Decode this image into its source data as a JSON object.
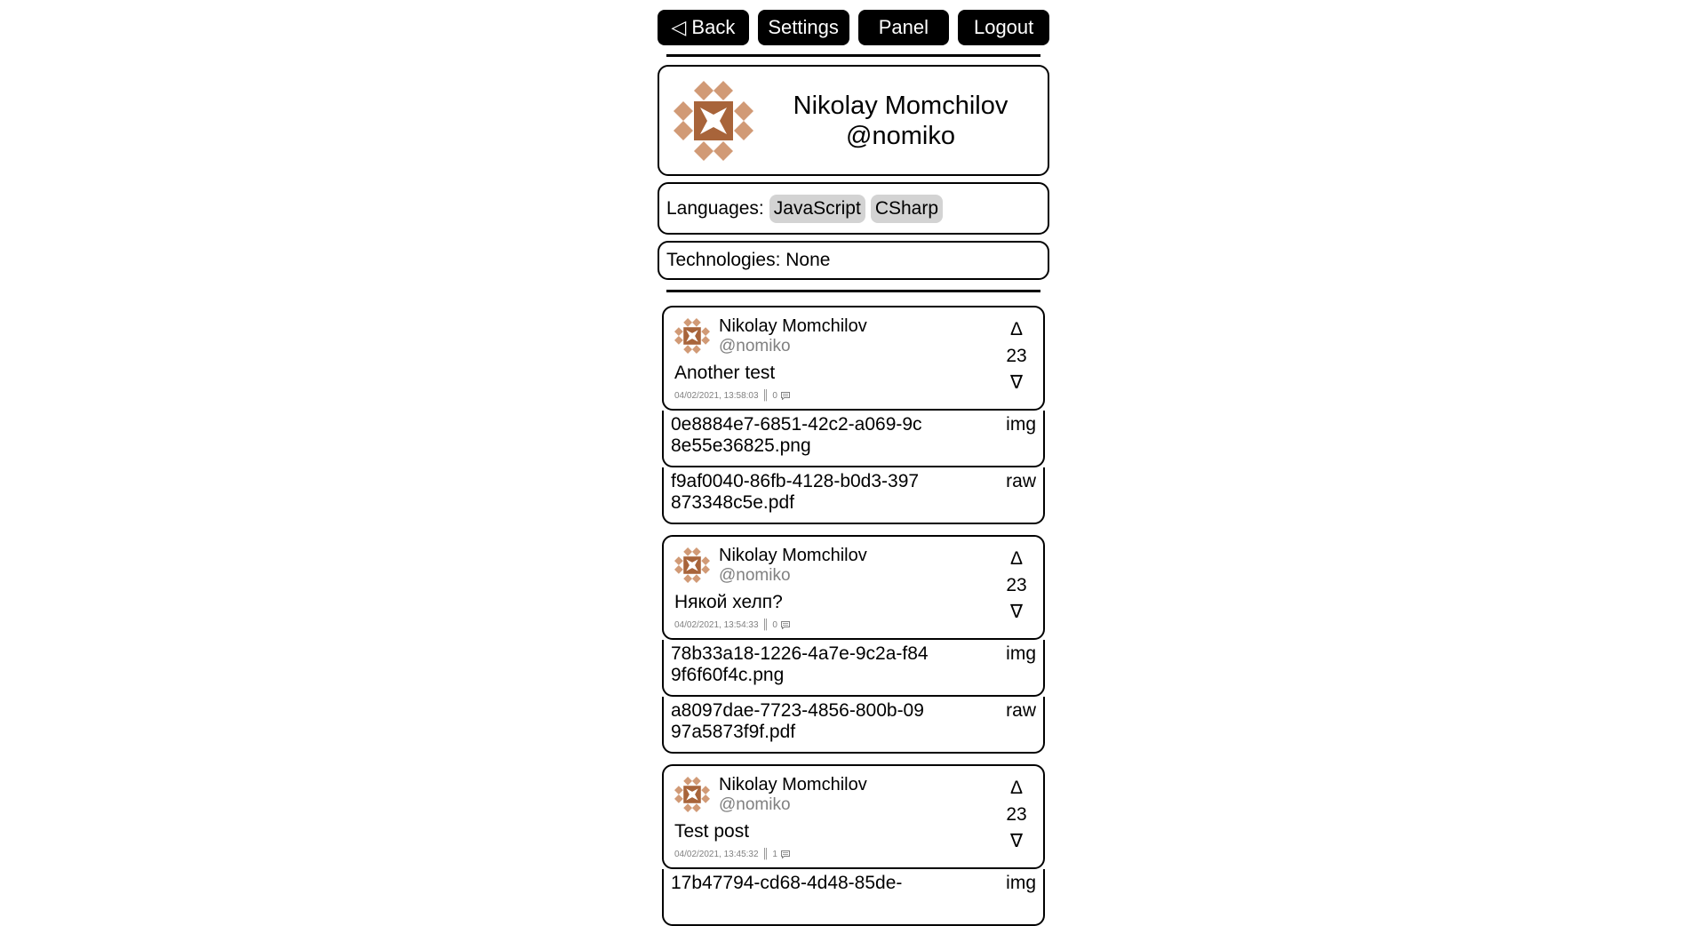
{
  "nav": {
    "back": "◁ Back",
    "settings": "Settings",
    "panel": "Panel",
    "logout": "Logout"
  },
  "profile": {
    "name": "Nikolay Momchilov",
    "handle": "@nomiko",
    "avatar_colors": {
      "dark": "#a8643a",
      "light": "#d19a76"
    }
  },
  "languages": {
    "label": "Languages:",
    "items": [
      "JavaScript",
      "CSharp"
    ]
  },
  "technologies": {
    "label": "Technologies: None"
  },
  "posts": [
    {
      "name": "Nikolay Momchilov",
      "handle": "@nomiko",
      "text": "Another test",
      "date": "04/02/2021, 13:58:03",
      "sep": "║",
      "comments": "0",
      "score": "23",
      "up": "Δ",
      "down": "∇",
      "files": [
        {
          "name": "0e8884e7-6851-42c2-a069-9c8e55e36825.png",
          "type": "img"
        },
        {
          "name": "f9af0040-86fb-4128-b0d3-397873348c5e.pdf",
          "type": "raw"
        }
      ]
    },
    {
      "name": "Nikolay Momchilov",
      "handle": "@nomiko",
      "text": "Някой хелп?",
      "date": "04/02/2021, 13:54:33",
      "sep": "║",
      "comments": "0",
      "score": "23",
      "up": "Δ",
      "down": "∇",
      "files": [
        {
          "name": "78b33a18-1226-4a7e-9c2a-f849f6f60f4c.png",
          "type": "img"
        },
        {
          "name": "a8097dae-7723-4856-800b-0997a5873f9f.pdf",
          "type": "raw"
        }
      ]
    },
    {
      "name": "Nikolay Momchilov",
      "handle": "@nomiko",
      "text": "Test post",
      "date": "04/02/2021, 13:45:32",
      "sep": "║",
      "comments": "1",
      "score": "23",
      "up": "Δ",
      "down": "∇",
      "files": [
        {
          "name": "17b47794-cd68-4d48-85de-",
          "type": "img"
        }
      ]
    }
  ]
}
